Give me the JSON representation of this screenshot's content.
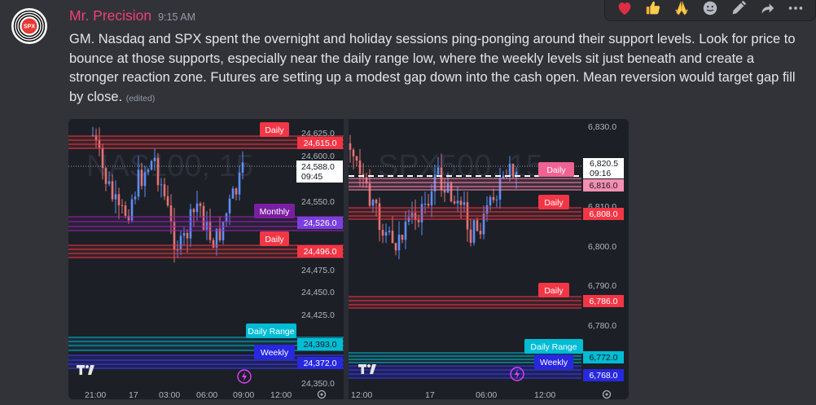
{
  "message": {
    "username": "Mr. Precision",
    "timestamp": "9:15 AM",
    "body": "GM. Nasdaq and SPX spent the overnight and holiday sessions ping-ponging around their support levels. Look for price to bounce at those supports, especially near the daily range low, where the weekly levels sit just beneath and create a stronger reaction zone. Futures are setting up a modest gap down into the cash open. Mean reversion would target gap fill by close.",
    "edited": "(edited)",
    "avatar_text": "SPX"
  },
  "reaction_bar": {
    "items": [
      "heart-emoji",
      "thumbs-up-emoji",
      "praying-hands-emoji",
      "add-reaction-icon",
      "edit-icon",
      "forward-icon",
      "more-icon"
    ]
  },
  "charts": {
    "left": {
      "watermark": "NAS100, 15",
      "y_ticks": [
        "24,625.0",
        "24,600.0",
        "24,550.0",
        "24,475.0",
        "24,450.0",
        "24,425.0",
        "24,350.0"
      ],
      "x_ticks": [
        "21:00",
        "17",
        "03:00",
        "06:00",
        "09:00",
        "12:00"
      ],
      "price_current": "24,588.0",
      "price_countdown": "09:45",
      "levels": [
        {
          "tag": "Daily",
          "price": "24,615.0",
          "color": "#f23645"
        },
        {
          "tag": "Monthly",
          "price": "24,526.0",
          "color": "#7b1fa2"
        },
        {
          "tag": "Daily",
          "price": "24,496.0",
          "color": "#f23645"
        },
        {
          "tag": "Daily Range",
          "price": "24,393.0",
          "color": "#00bcd4"
        },
        {
          "tag": "Weekly",
          "price": "24,372.0",
          "color": "#2828e0"
        }
      ]
    },
    "right": {
      "watermark": "SPX500, 15",
      "y_ticks": [
        "6,830.0",
        "6,810.0",
        "6,800.0",
        "6,790.0",
        "6,780.0"
      ],
      "x_ticks": [
        "12:00",
        "17",
        "06:00",
        "12:00"
      ],
      "price_current": "6,820.5",
      "price_countdown": "09:16",
      "levels": [
        {
          "tag": "Daily",
          "price": "6,816.0",
          "color": "#f06292"
        },
        {
          "tag": "Daily",
          "price": "6,808.0",
          "color": "#f23645"
        },
        {
          "tag": "Daily",
          "price": "6,786.0",
          "color": "#f23645"
        },
        {
          "tag": "Daily Range",
          "price": "6,772.0",
          "color": "#00bcd4"
        },
        {
          "tag": "Weekly",
          "price": "6,768.0",
          "color": "#2828e0"
        }
      ]
    }
  },
  "colors": {
    "username": "#f23f77",
    "bg": "#323339",
    "chart_bg": "#1c1f26",
    "candle_up": "#5b8ff9",
    "candle_down": "#e57373"
  }
}
